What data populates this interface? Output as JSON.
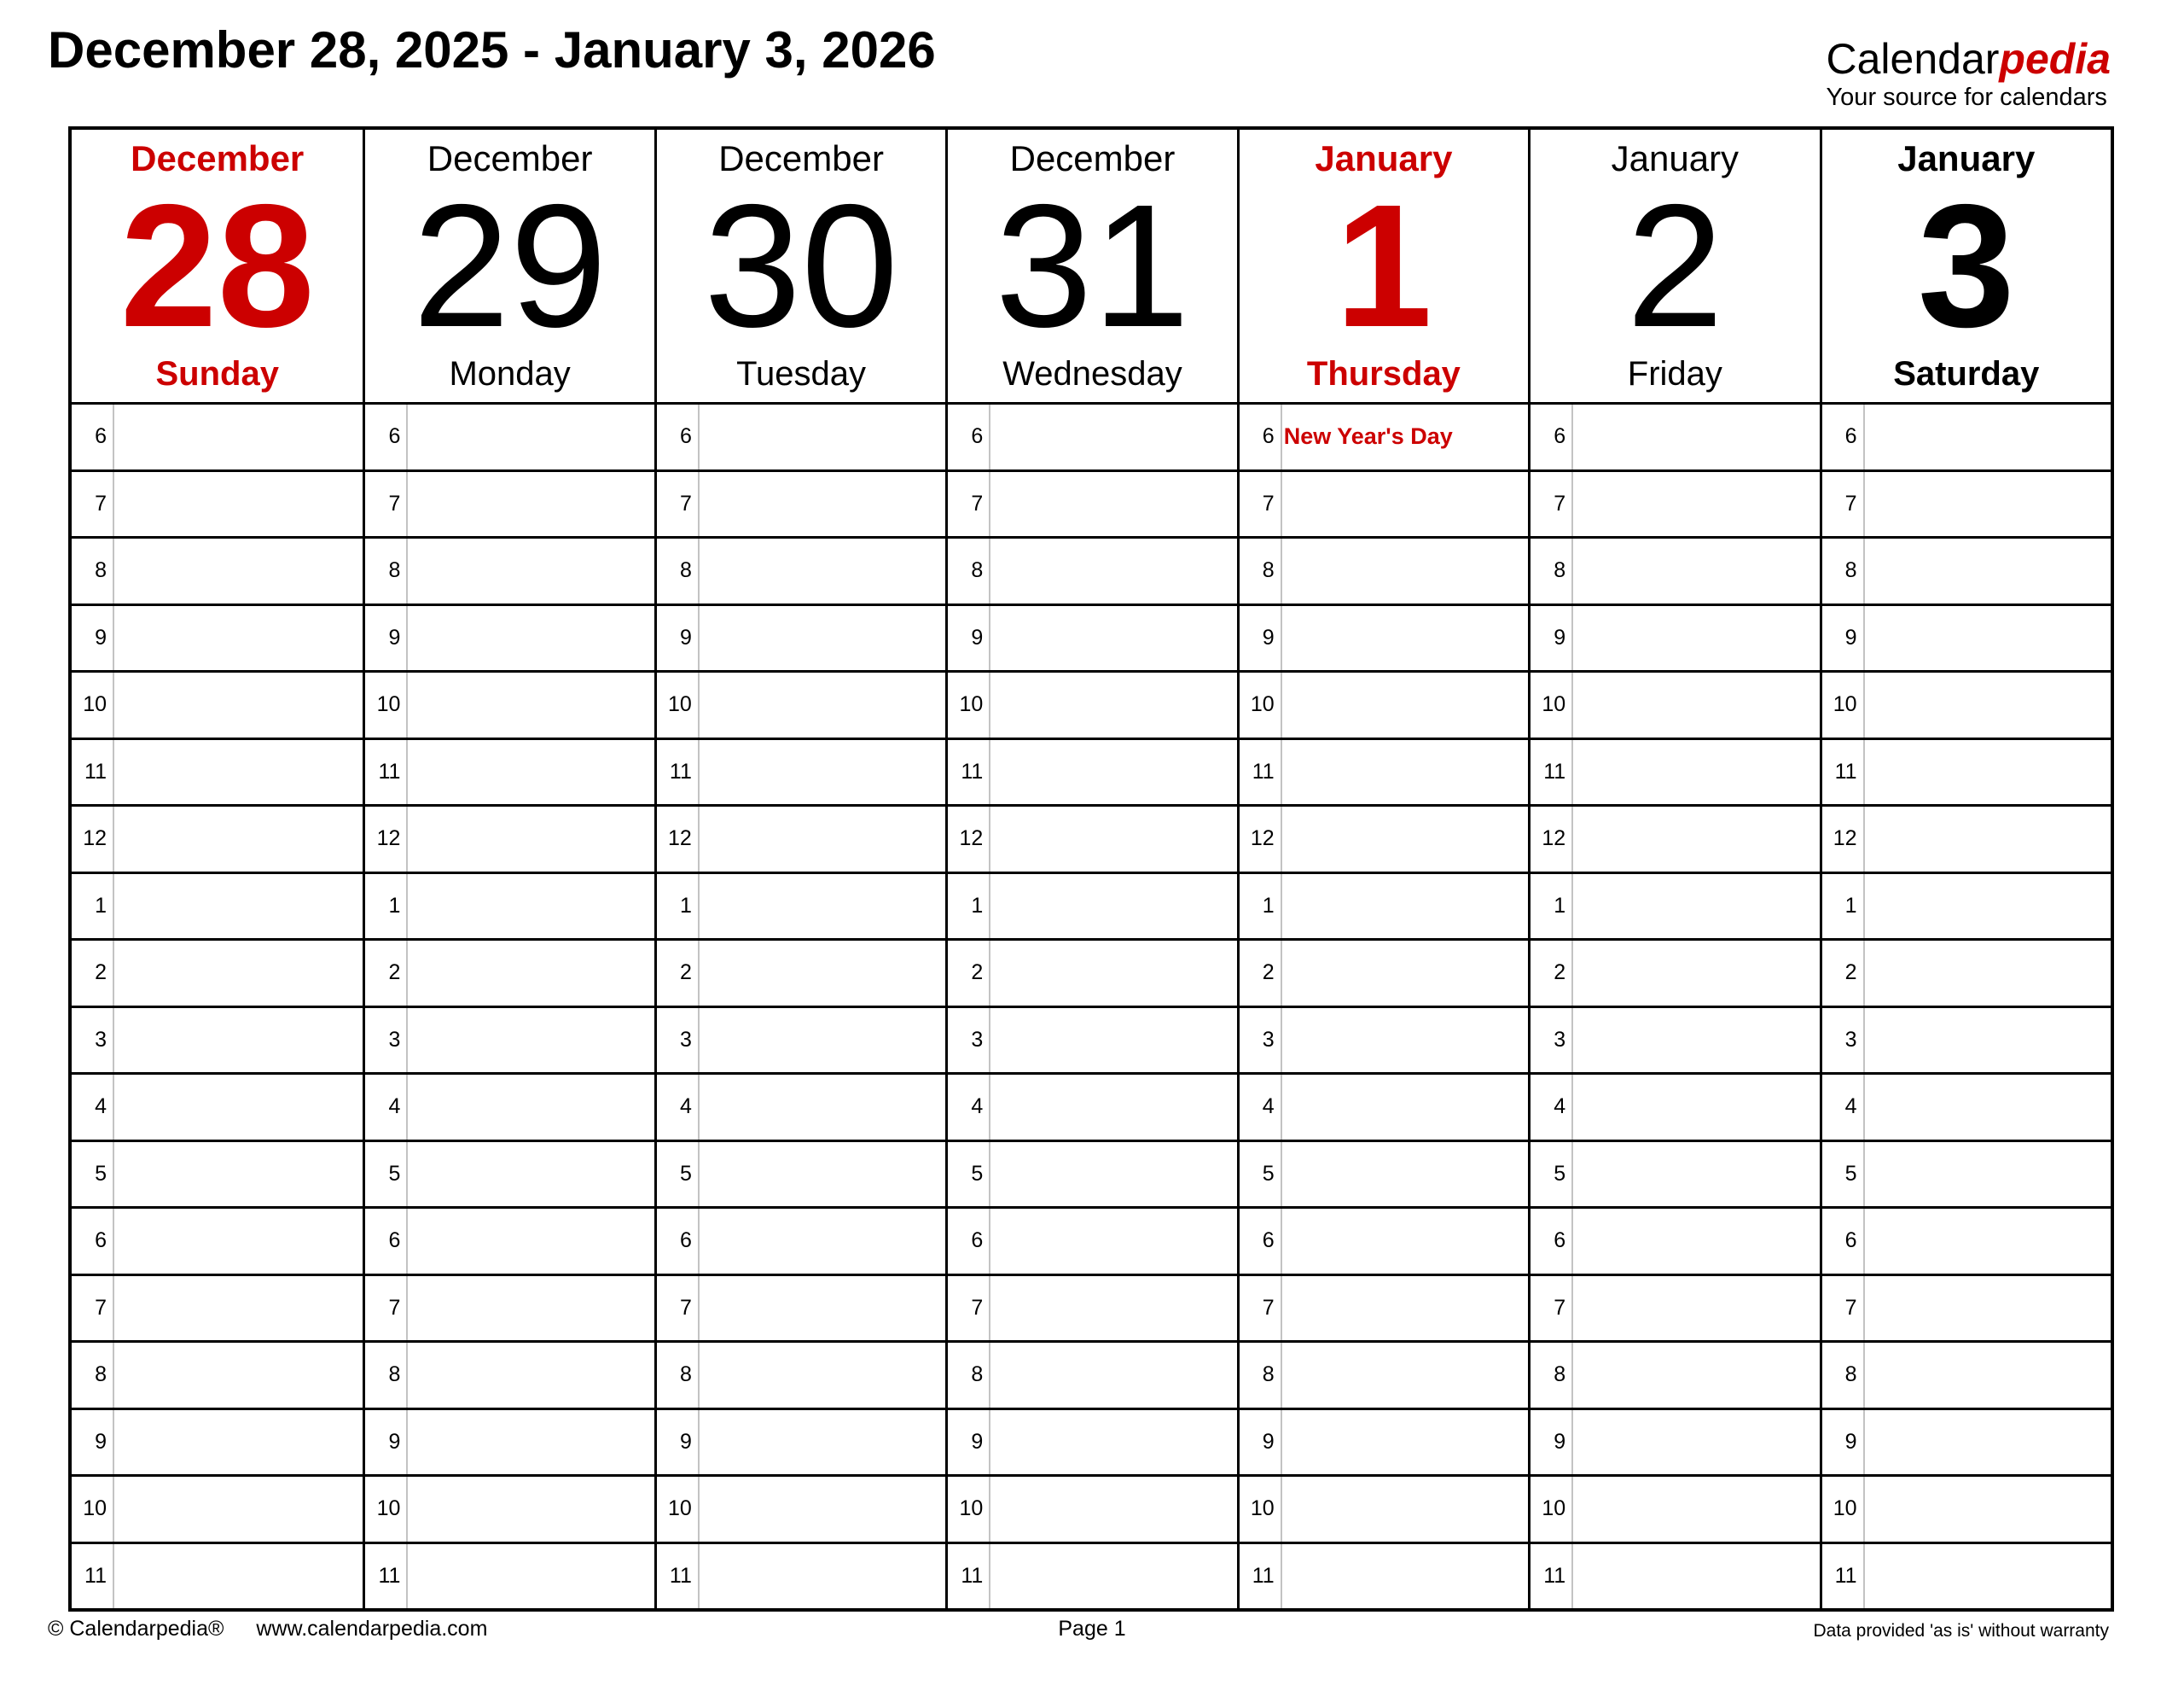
{
  "header": {
    "title": "December 28, 2025 - January 3, 2026",
    "logo": {
      "black": "Calendar",
      "red": "pedia",
      "tagline": "Your source for calendars"
    }
  },
  "colors": {
    "accent_red": "#cc0000",
    "grid_black": "#000000",
    "divider_gray": "#c3c3c3"
  },
  "week": {
    "days": [
      {
        "month": "December",
        "date": "28",
        "weekday": "Sunday",
        "style": "red-bold"
      },
      {
        "month": "December",
        "date": "29",
        "weekday": "Monday",
        "style": "black"
      },
      {
        "month": "December",
        "date": "30",
        "weekday": "Tuesday",
        "style": "black"
      },
      {
        "month": "December",
        "date": "31",
        "weekday": "Wednesday",
        "style": "black"
      },
      {
        "month": "January",
        "date": "1",
        "weekday": "Thursday",
        "style": "red-bold",
        "holiday": {
          "time_row_index": 0,
          "label": "New Year's Day"
        }
      },
      {
        "month": "January",
        "date": "2",
        "weekday": "Friday",
        "style": "black"
      },
      {
        "month": "January",
        "date": "3",
        "weekday": "Saturday",
        "style": "black-bold"
      }
    ],
    "time_labels": [
      "6",
      "7",
      "8",
      "9",
      "10",
      "11",
      "12",
      "1",
      "2",
      "3",
      "4",
      "5",
      "6",
      "7",
      "8",
      "9",
      "10",
      "11"
    ]
  },
  "footer": {
    "copyright": "© Calendarpedia®",
    "website": "www.calendarpedia.com",
    "page": "Page 1",
    "disclaimer": "Data provided 'as is' without warranty"
  }
}
